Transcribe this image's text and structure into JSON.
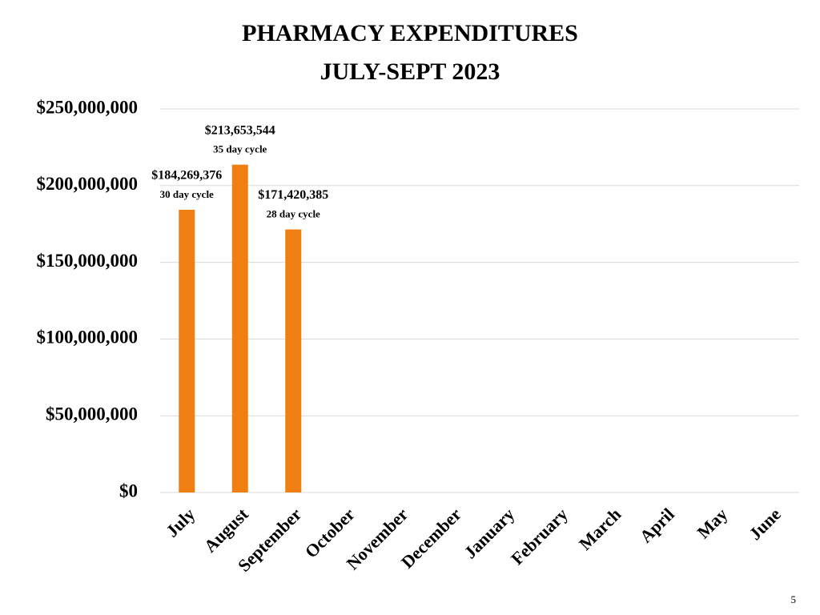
{
  "chart_data": {
    "type": "bar",
    "title": "PHARMACY EXPENDITURES",
    "subtitle": "JULY-SEPT 2023",
    "categories": [
      "July",
      "August",
      "September",
      "October",
      "November",
      "December",
      "January",
      "February",
      "March",
      "April",
      "May",
      "June"
    ],
    "values": [
      184269376,
      213653544,
      171420385,
      null,
      null,
      null,
      null,
      null,
      null,
      null,
      null,
      null
    ],
    "value_labels": [
      "$184,269,376",
      "$213,653,544",
      "$171,420,385",
      null,
      null,
      null,
      null,
      null,
      null,
      null,
      null,
      null
    ],
    "value_notes": [
      "30 day cycle",
      "35 day cycle",
      "28 day cycle",
      null,
      null,
      null,
      null,
      null,
      null,
      null,
      null,
      null
    ],
    "color": "#ee7f10",
    "ylim": [
      0,
      250000000
    ],
    "yticks": [
      {
        "value": 0,
        "label": "$0"
      },
      {
        "value": 50000000,
        "label": "$50,000,000"
      },
      {
        "value": 100000000,
        "label": "$100,000,000"
      },
      {
        "value": 150000000,
        "label": "$150,000,000"
      },
      {
        "value": 200000000,
        "label": "$200,000,000"
      },
      {
        "value": 250000000,
        "label": "$250,000,000"
      }
    ],
    "grid": true
  },
  "page_number": "5"
}
